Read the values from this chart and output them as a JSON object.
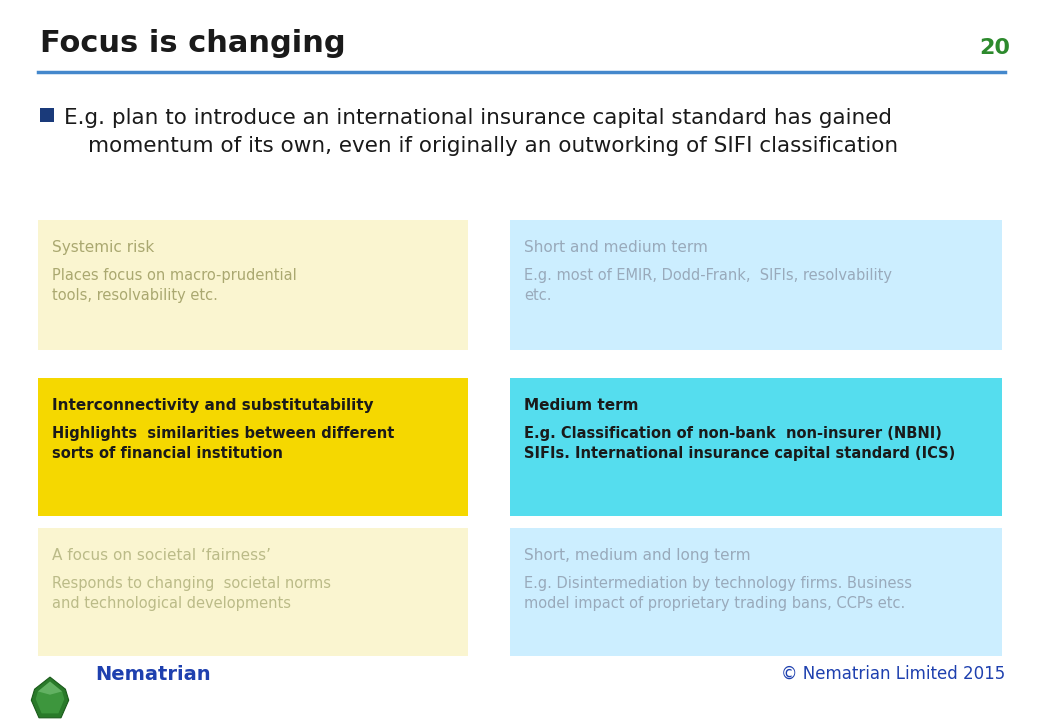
{
  "title": "Focus is changing",
  "slide_number": "20",
  "title_fontsize": 22,
  "title_color": "#1a1a1a",
  "slide_number_color": "#2d8a2d",
  "background_color": "#ffffff",
  "line_color": "#4488cc",
  "bullet_color": "#1a3a7a",
  "bullet_text_line1": "E.g. plan to introduce an international insurance capital standard has gained",
  "bullet_text_line2": "momentum of its own, even if originally an outworking of SIFI classification",
  "bullet_fontsize": 15.5,
  "boxes": [
    {
      "title": "Systemic risk",
      "body": "Places focus on macro-prudential\ntools, resolvability etc.",
      "bg_color": "#faf5d0",
      "title_color": "#aaa870",
      "body_color": "#aaa870",
      "bold": false,
      "col": 0,
      "row": 0
    },
    {
      "title": "Short and medium term",
      "body": "E.g. most of EMIR, Dodd-Frank,  SIFIs, resolvability\netc.",
      "bg_color": "#cceeff",
      "title_color": "#99aabb",
      "body_color": "#99aabb",
      "bold": false,
      "col": 1,
      "row": 0
    },
    {
      "title": "Interconnectivity and substitutability",
      "body": "Highlights  similarities between different\nsorts of financial institution",
      "bg_color": "#f5d800",
      "title_color": "#1a1a1a",
      "body_color": "#1a1a1a",
      "bold": true,
      "col": 0,
      "row": 1
    },
    {
      "title": "Medium term",
      "body": "E.g. Classification of non-bank  non-insurer (NBNI)\nSIFIs. International insurance capital standard (ICS)",
      "bg_color": "#55ddee",
      "title_color": "#1a1a1a",
      "body_color": "#1a1a1a",
      "bold": true,
      "col": 1,
      "row": 1
    },
    {
      "title": "A focus on societal ‘fairness’",
      "body": "Responds to changing  societal norms\nand technological developments",
      "bg_color": "#faf5d0",
      "title_color": "#bbbb88",
      "body_color": "#bbbb88",
      "bold": false,
      "col": 0,
      "row": 2
    },
    {
      "title": "Short, medium and long term",
      "body": "E.g. Disintermediation by technology firms. Business\nmodel impact of proprietary trading bans, CCPs etc.",
      "bg_color": "#cceeff",
      "title_color": "#99aabb",
      "body_color": "#99aabb",
      "bold": false,
      "col": 1,
      "row": 2
    }
  ],
  "footer_nematrian_color": "#1e40af",
  "footer_copyright": "© Nematrian Limited 2015",
  "footer_copyright_color": "#1e40af"
}
